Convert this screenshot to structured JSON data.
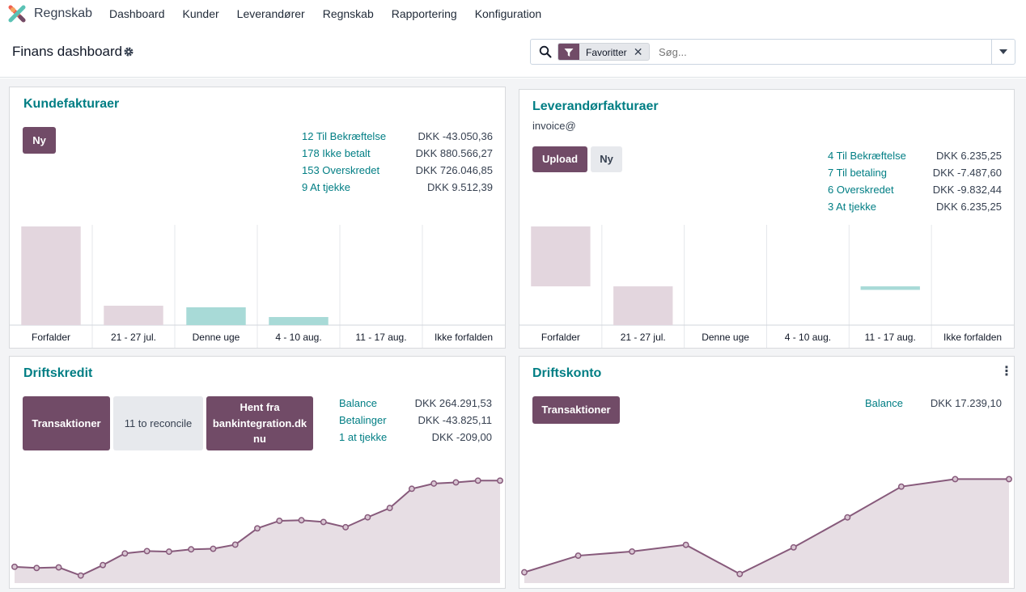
{
  "app": {
    "name": "Regnskab",
    "logo_icon": "odoo-logo-icon"
  },
  "menu": [
    "Dashboard",
    "Kunder",
    "Leverandører",
    "Regnskab",
    "Rapportering",
    "Konfiguration"
  ],
  "page": {
    "title": "Finans dashboard"
  },
  "search": {
    "facet": "Favoritter",
    "placeholder": "Søg..."
  },
  "colors": {
    "primary": "#714B67",
    "link": "#017e84",
    "past_bar": "#e3d6de",
    "future_bar": "#a8dad7",
    "line": "#875a7b",
    "area": "#e7dee4"
  },
  "cards": {
    "kundefakturaer": {
      "title": "Kundefakturaer",
      "btn_new": "Ny",
      "stats": [
        {
          "label": "12 Til Bekræftelse",
          "value": "DKK -43.050,36"
        },
        {
          "label": "178 Ikke betalt",
          "value": "DKK 880.566,27"
        },
        {
          "label": "153 Overskredet",
          "value": "DKK 726.046,85"
        },
        {
          "label": "9 At tjekke",
          "value": "DKK 9.512,39"
        }
      ]
    },
    "leverandorfakturaer": {
      "title": "Leverandørfakturaer",
      "email": "invoice@",
      "btn_upload": "Upload",
      "btn_new": "Ny",
      "stats": [
        {
          "label": "4 Til Bekræftelse",
          "value": "DKK 6.235,25"
        },
        {
          "label": "7 Til betaling",
          "value": "DKK -7.487,60"
        },
        {
          "label": "6 Overskredet",
          "value": "DKK -9.832,44"
        },
        {
          "label": "3 At tjekke",
          "value": "DKK 6.235,25"
        }
      ]
    },
    "driftskredit": {
      "title": "Driftskredit",
      "btn_transactions": "Transaktioner",
      "btn_reconcile": "11 to reconcile",
      "btn_fetch_1": "Hent fra",
      "btn_fetch_2": "bankintegration.dk",
      "btn_fetch_3": "nu",
      "stats": [
        {
          "label": "Balance",
          "value": "DKK 264.291,53"
        },
        {
          "label": "Betalinger",
          "value": "DKK -43.825,11"
        },
        {
          "label": "1 at tjekke",
          "value": "DKK -209,00"
        }
      ]
    },
    "driftskonto": {
      "title": "Driftskonto",
      "btn_transactions": "Transaktioner",
      "stats": [
        {
          "label": "Balance",
          "value": "DKK 17.239,10"
        }
      ]
    }
  },
  "chart_data": [
    {
      "type": "bar",
      "categories": [
        "Forfalder",
        "21 - 27 jul.",
        "Denne uge",
        "4 - 10 aug.",
        "11 - 17 aug.",
        "Ikke forfalden"
      ],
      "values": [
        122,
        24,
        22,
        10,
        0,
        0
      ],
      "status": [
        "past",
        "past",
        "future",
        "future",
        "future",
        "future"
      ],
      "ylim": [
        0,
        122
      ]
    },
    {
      "type": "bar",
      "categories": [
        "Forfalder",
        "21 - 27 jul.",
        "Denne uge",
        "4 - 10 aug.",
        "11 - 17 aug.",
        "Ikke forfalden"
      ],
      "values": [
        68,
        -44,
        0,
        0,
        -4,
        0
      ],
      "status": [
        "past",
        "past",
        "future",
        "future",
        "future",
        "future"
      ],
      "ylim": [
        -44,
        68
      ]
    },
    {
      "type": "line",
      "values": [
        28,
        26,
        27,
        13,
        31,
        51,
        55,
        54,
        58,
        59,
        66,
        94,
        107,
        108,
        105,
        96,
        113,
        129,
        162,
        171,
        173,
        176,
        176
      ],
      "ylim": [
        0,
        200
      ]
    },
    {
      "type": "line",
      "values": [
        13,
        33,
        38,
        46,
        11,
        43,
        79,
        116,
        125,
        125
      ],
      "ylim": [
        0,
        140
      ]
    }
  ]
}
